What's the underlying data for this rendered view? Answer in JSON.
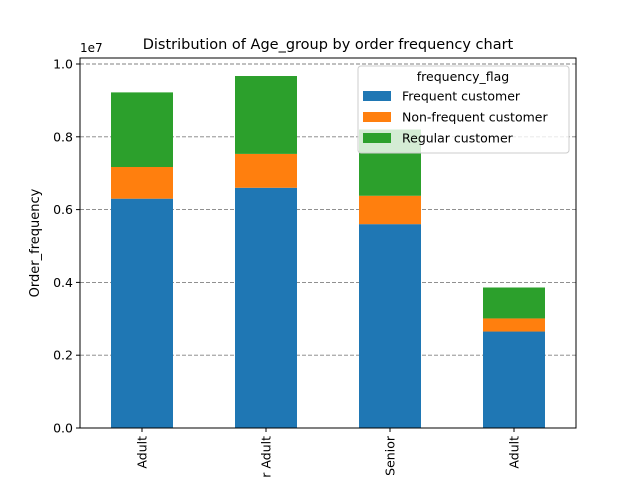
{
  "chart_data": {
    "type": "bar",
    "stacked": true,
    "title": "Distribution of Age_group  by order frequency chart",
    "xlabel": "",
    "ylabel": "Order_frequency",
    "y_scale_note": "1e7",
    "ylim": [
      0,
      1.0
    ],
    "yticks": [
      "0.0",
      "0.2",
      "0.4",
      "0.6",
      "0.8",
      "1.0"
    ],
    "grid": "y-dashed",
    "categories": [
      "Adult",
      "r Adult",
      "Senior",
      "Adult"
    ],
    "series": [
      {
        "name": "Frequent customer",
        "color": "#1f77b4",
        "values": [
          0.63,
          0.66,
          0.56,
          0.265
        ]
      },
      {
        "name": "Non-frequent customer",
        "color": "#ff7f0e",
        "values": [
          0.087,
          0.093,
          0.078,
          0.036
        ]
      },
      {
        "name": "Regular customer",
        "color": "#2ca02c",
        "values": [
          0.205,
          0.214,
          0.182,
          0.085
        ]
      }
    ],
    "legend": {
      "title": "frequency_flag",
      "placement": "top-right"
    }
  }
}
